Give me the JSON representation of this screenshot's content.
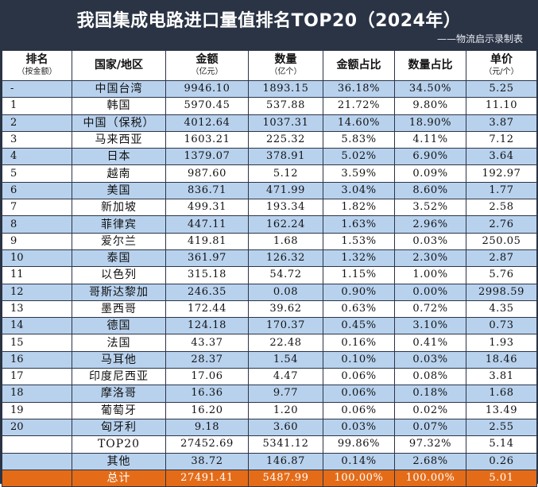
{
  "title": "我国集成电路进口量值排名TOP20（2024年）",
  "subtitle": "——物流启示录制表",
  "columns": [
    {
      "label": "排名",
      "sub": "（按金额）"
    },
    {
      "label": "国家/地区",
      "sub": ""
    },
    {
      "label": "金额",
      "sub": "（亿元）"
    },
    {
      "label": "数量",
      "sub": "（亿个）"
    },
    {
      "label": "金额占比",
      "sub": ""
    },
    {
      "label": "数量占比",
      "sub": ""
    },
    {
      "label": "单价",
      "sub": "（元/个）"
    }
  ],
  "rows": [
    {
      "rank": "-",
      "country": "中国台湾",
      "amount": "9946.10",
      "qty": "1893.15",
      "amt_pct": "36.18%",
      "qty_pct": "34.50%",
      "price": "5.25",
      "style": "blue"
    },
    {
      "rank": "1",
      "country": "韩国",
      "amount": "5970.45",
      "qty": "537.88",
      "amt_pct": "21.72%",
      "qty_pct": "9.80%",
      "price": "11.10",
      "style": "white"
    },
    {
      "rank": "2",
      "country": "中国（保税）",
      "amount": "4012.64",
      "qty": "1037.31",
      "amt_pct": "14.60%",
      "qty_pct": "18.90%",
      "price": "3.87",
      "style": "blue"
    },
    {
      "rank": "3",
      "country": "马来西亚",
      "amount": "1603.21",
      "qty": "225.32",
      "amt_pct": "5.83%",
      "qty_pct": "4.11%",
      "price": "7.12",
      "style": "white"
    },
    {
      "rank": "4",
      "country": "日本",
      "amount": "1379.07",
      "qty": "378.91",
      "amt_pct": "5.02%",
      "qty_pct": "6.90%",
      "price": "3.64",
      "style": "blue"
    },
    {
      "rank": "5",
      "country": "越南",
      "amount": "987.60",
      "qty": "5.12",
      "amt_pct": "3.59%",
      "qty_pct": "0.09%",
      "price": "192.97",
      "style": "white"
    },
    {
      "rank": "6",
      "country": "美国",
      "amount": "836.71",
      "qty": "471.99",
      "amt_pct": "3.04%",
      "qty_pct": "8.60%",
      "price": "1.77",
      "style": "blue"
    },
    {
      "rank": "7",
      "country": "新加坡",
      "amount": "499.31",
      "qty": "193.34",
      "amt_pct": "1.82%",
      "qty_pct": "3.52%",
      "price": "2.58",
      "style": "white"
    },
    {
      "rank": "8",
      "country": "菲律宾",
      "amount": "447.11",
      "qty": "162.24",
      "amt_pct": "1.63%",
      "qty_pct": "2.96%",
      "price": "2.76",
      "style": "blue"
    },
    {
      "rank": "9",
      "country": "爱尔兰",
      "amount": "419.81",
      "qty": "1.68",
      "amt_pct": "1.53%",
      "qty_pct": "0.03%",
      "price": "250.05",
      "style": "white"
    },
    {
      "rank": "10",
      "country": "泰国",
      "amount": "361.97",
      "qty": "126.32",
      "amt_pct": "1.32%",
      "qty_pct": "2.30%",
      "price": "2.87",
      "style": "blue"
    },
    {
      "rank": "11",
      "country": "以色列",
      "amount": "315.18",
      "qty": "54.72",
      "amt_pct": "1.15%",
      "qty_pct": "1.00%",
      "price": "5.76",
      "style": "white"
    },
    {
      "rank": "12",
      "country": "哥斯达黎加",
      "amount": "246.35",
      "qty": "0.08",
      "amt_pct": "0.90%",
      "qty_pct": "0.00%",
      "price": "2998.59",
      "style": "blue"
    },
    {
      "rank": "13",
      "country": "墨西哥",
      "amount": "172.44",
      "qty": "39.62",
      "amt_pct": "0.63%",
      "qty_pct": "0.72%",
      "price": "4.35",
      "style": "white"
    },
    {
      "rank": "14",
      "country": "德国",
      "amount": "124.18",
      "qty": "170.37",
      "amt_pct": "0.45%",
      "qty_pct": "3.10%",
      "price": "0.73",
      "style": "blue"
    },
    {
      "rank": "15",
      "country": "法国",
      "amount": "43.37",
      "qty": "22.48",
      "amt_pct": "0.16%",
      "qty_pct": "0.41%",
      "price": "1.93",
      "style": "white"
    },
    {
      "rank": "16",
      "country": "马耳他",
      "amount": "28.37",
      "qty": "1.54",
      "amt_pct": "0.10%",
      "qty_pct": "0.03%",
      "price": "18.46",
      "style": "blue"
    },
    {
      "rank": "17",
      "country": "印度尼西亚",
      "amount": "17.06",
      "qty": "4.47",
      "amt_pct": "0.06%",
      "qty_pct": "0.08%",
      "price": "3.81",
      "style": "white"
    },
    {
      "rank": "18",
      "country": "摩洛哥",
      "amount": "16.36",
      "qty": "9.77",
      "amt_pct": "0.06%",
      "qty_pct": "0.18%",
      "price": "1.68",
      "style": "blue"
    },
    {
      "rank": "19",
      "country": "葡萄牙",
      "amount": "16.20",
      "qty": "1.20",
      "amt_pct": "0.06%",
      "qty_pct": "0.02%",
      "price": "13.49",
      "style": "white"
    },
    {
      "rank": "20",
      "country": "匈牙利",
      "amount": "9.18",
      "qty": "3.60",
      "amt_pct": "0.03%",
      "qty_pct": "0.07%",
      "price": "2.55",
      "style": "blue"
    },
    {
      "rank": "",
      "country": "TOP20",
      "amount": "27452.69",
      "qty": "5341.12",
      "amt_pct": "99.86%",
      "qty_pct": "97.32%",
      "price": "5.14",
      "style": "white"
    },
    {
      "rank": "",
      "country": "其他",
      "amount": "38.72",
      "qty": "146.87",
      "amt_pct": "0.14%",
      "qty_pct": "2.68%",
      "price": "0.26",
      "style": "blue"
    },
    {
      "rank": "",
      "country": "总计",
      "amount": "27491.41",
      "qty": "5487.99",
      "amt_pct": "100.00%",
      "qty_pct": "100.00%",
      "price": "5.01",
      "style": "total"
    }
  ],
  "colors": {
    "header_bg": "#2b3445",
    "row_blue": "#b8d2ee",
    "row_white": "#ffffff",
    "total_bg": "#e46c19"
  }
}
